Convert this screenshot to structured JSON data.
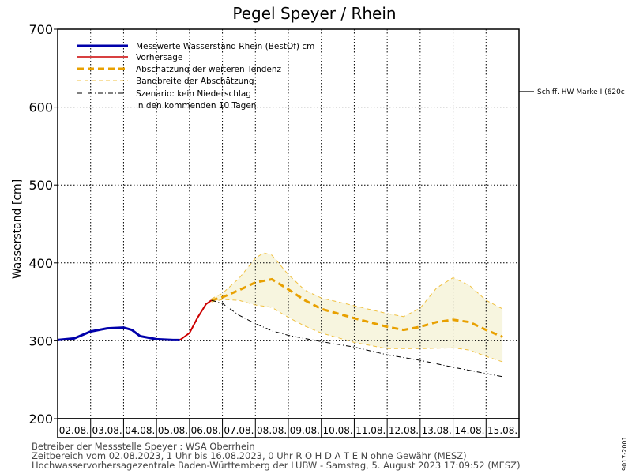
{
  "chart_data": {
    "type": "line",
    "title": "Pegel Speyer / Rhein",
    "xlabel": "",
    "ylabel": "Wasserstand [cm]",
    "ylim": [
      200,
      700
    ],
    "yticks": [
      200,
      300,
      400,
      500,
      600,
      700
    ],
    "xlim": [
      "02.08.2023 00:00",
      "16.08.2023 00:00"
    ],
    "x_tick_labels": [
      "02.08.",
      "03.08.",
      "04.08.",
      "05.08.",
      "06.08.",
      "07.08.",
      "08.08.",
      "09.08.",
      "10.08.",
      "11.08.",
      "12.08.",
      "13.08.",
      "14.08.",
      "15.08."
    ],
    "grid": true,
    "legend_position": "top-left",
    "series": [
      {
        "name": "Messwerte Wasserstand Rhein (BestOf) cm",
        "color": "#0000aa",
        "style": "solid",
        "points": [
          [
            "02.08.2023 00:00",
            301
          ],
          [
            "02.08.2023 12:00",
            303
          ],
          [
            "03.08.2023 00:00",
            312
          ],
          [
            "03.08.2023 12:00",
            316
          ],
          [
            "04.08.2023 00:00",
            317
          ],
          [
            "04.08.2023 06:00",
            314
          ],
          [
            "04.08.2023 12:00",
            306
          ],
          [
            "05.08.2023 00:00",
            302
          ],
          [
            "05.08.2023 12:00",
            301
          ],
          [
            "05.08.2023 17:00",
            301
          ]
        ]
      },
      {
        "name": "Vorhersage",
        "color": "#cc0000",
        "style": "solid",
        "points": [
          [
            "05.08.2023 17:00",
            301
          ],
          [
            "06.08.2023 00:00",
            310
          ],
          [
            "06.08.2023 06:00",
            330
          ],
          [
            "06.08.2023 12:00",
            347
          ],
          [
            "06.08.2023 16:00",
            352
          ]
        ]
      },
      {
        "name": "Abschätzung der weiteren Tendenz",
        "color": "#e8a000",
        "style": "dashed",
        "points": [
          [
            "06.08.2023 16:00",
            352
          ],
          [
            "07.08.2023 00:00",
            356
          ],
          [
            "07.08.2023 12:00",
            365
          ],
          [
            "08.08.2023 00:00",
            375
          ],
          [
            "08.08.2023 12:00",
            379
          ],
          [
            "09.08.2023 00:00",
            366
          ],
          [
            "09.08.2023 12:00",
            352
          ],
          [
            "10.08.2023 00:00",
            341
          ],
          [
            "11.08.2023 00:00",
            329
          ],
          [
            "12.08.2023 00:00",
            318
          ],
          [
            "12.08.2023 12:00",
            314
          ],
          [
            "13.08.2023 00:00",
            318
          ],
          [
            "13.08.2023 12:00",
            324
          ],
          [
            "14.08.2023 00:00",
            327
          ],
          [
            "14.08.2023 12:00",
            324
          ],
          [
            "15.08.2023 00:00",
            314
          ],
          [
            "15.08.2023 12:00",
            305
          ]
        ]
      },
      {
        "name": "Bandbreite der Abschätzung",
        "color": "#f0c040",
        "style": "dashed",
        "upper": [
          [
            "06.08.2023 16:00",
            354
          ],
          [
            "07.08.2023 00:00",
            361
          ],
          [
            "07.08.2023 12:00",
            380
          ],
          [
            "08.08.2023 00:00",
            406
          ],
          [
            "08.08.2023 06:00",
            413
          ],
          [
            "08.08.2023 12:00",
            410
          ],
          [
            "09.08.2023 00:00",
            385
          ],
          [
            "09.08.2023 12:00",
            365
          ],
          [
            "10.08.2023 00:00",
            355
          ],
          [
            "11.08.2023 00:00",
            345
          ],
          [
            "12.08.2023 00:00",
            335
          ],
          [
            "12.08.2023 12:00",
            331
          ],
          [
            "13.08.2023 00:00",
            342
          ],
          [
            "13.08.2023 12:00",
            368
          ],
          [
            "14.08.2023 00:00",
            381
          ],
          [
            "14.08.2023 12:00",
            371
          ],
          [
            "15.08.2023 00:00",
            352
          ],
          [
            "15.08.2023 12:00",
            341
          ]
        ],
        "lower": [
          [
            "06.08.2023 16:00",
            350
          ],
          [
            "07.08.2023 00:00",
            353
          ],
          [
            "07.08.2023 12:00",
            352
          ],
          [
            "08.08.2023 00:00",
            346
          ],
          [
            "08.08.2023 12:00",
            343
          ],
          [
            "09.08.2023 00:00",
            330
          ],
          [
            "09.08.2023 12:00",
            319
          ],
          [
            "10.08.2023 00:00",
            310
          ],
          [
            "11.08.2023 00:00",
            298
          ],
          [
            "12.08.2023 00:00",
            290
          ],
          [
            "13.08.2023 00:00",
            290
          ],
          [
            "14.08.2023 00:00",
            291
          ],
          [
            "14.08.2023 12:00",
            288
          ],
          [
            "15.08.2023 00:00",
            280
          ],
          [
            "15.08.2023 12:00",
            273
          ]
        ]
      },
      {
        "name": "Szenario: kein Niederschlag in den kommenden 10 Tagen",
        "color": "#000000",
        "style": "dashdot",
        "points": [
          [
            "06.08.2023 16:00",
            352
          ],
          [
            "07.08.2023 00:00",
            348
          ],
          [
            "07.08.2023 12:00",
            333
          ],
          [
            "08.08.2023 00:00",
            322
          ],
          [
            "08.08.2023 12:00",
            313
          ],
          [
            "09.08.2023 00:00",
            307
          ],
          [
            "10.08.2023 00:00",
            299
          ],
          [
            "11.08.2023 00:00",
            292
          ],
          [
            "12.08.2023 00:00",
            282
          ],
          [
            "13.08.2023 00:00",
            275
          ],
          [
            "14.08.2023 00:00",
            266
          ],
          [
            "15.08.2023 00:00",
            258
          ],
          [
            "15.08.2023 12:00",
            254
          ]
        ]
      }
    ],
    "legend": [
      "Messwerte Wasserstand Rhein (BestOf) cm",
      "Vorhersage",
      "Abschätzung der weiteren Tendenz",
      "Bandbreite der Abschätzung",
      "Szenario: kein Niederschlag",
      "in den kommenden 10 Tagen"
    ],
    "annotations": [
      {
        "text": "Schiff. HW Marke I (620c",
        "y": 620
      }
    ]
  },
  "footer": {
    "line1": "Betreiber der Messstelle Speyer : WSA Oberrhein",
    "line2": "Zeitbereich vom 02.08.2023, 1 Uhr bis 16.08.2023, 0 Uhr   R O H D A T E N ohne Gewähr (MESZ)",
    "line3": "Hochwasservorhersagezentrale Baden-Württemberg der LUBW - Samstag, 5. August 2023 17:09:52 (MESZ)",
    "code": "9017-2001"
  },
  "colors": {
    "band_fill": "#f7f5df",
    "measured": "#0000aa",
    "forecast": "#cc0000",
    "tendency": "#e8a000",
    "band_line": "#f0c040",
    "scenario": "#000000"
  }
}
